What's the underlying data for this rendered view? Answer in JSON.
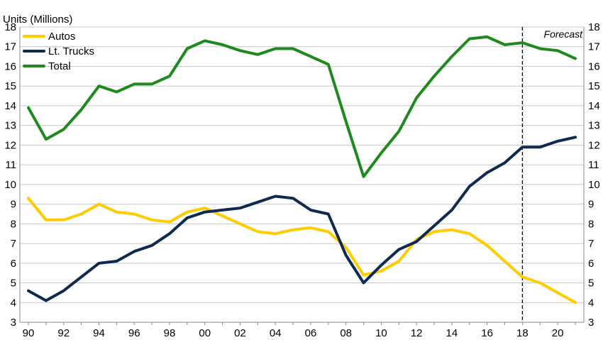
{
  "chart_data": {
    "type": "line",
    "ylabel": "Units (Millions)",
    "ylim": [
      3,
      18
    ],
    "yticks": [
      3,
      4,
      5,
      6,
      7,
      8,
      9,
      10,
      11,
      12,
      13,
      14,
      15,
      16,
      17,
      18
    ],
    "x": [
      1990,
      1991,
      1992,
      1993,
      1994,
      1995,
      1996,
      1997,
      1998,
      1999,
      2000,
      2001,
      2002,
      2003,
      2004,
      2005,
      2006,
      2007,
      2008,
      2009,
      2010,
      2011,
      2012,
      2013,
      2014,
      2015,
      2016,
      2017,
      2018,
      2019,
      2020,
      2021
    ],
    "xtick_labels": [
      "90",
      "92",
      "94",
      "96",
      "98",
      "00",
      "02",
      "04",
      "06",
      "08",
      "10",
      "12",
      "14",
      "16",
      "18",
      "20"
    ],
    "series": [
      {
        "name": "Autos",
        "color": "#FFCC00",
        "values": [
          9.3,
          8.2,
          8.2,
          8.5,
          9.0,
          8.6,
          8.5,
          8.2,
          8.1,
          8.6,
          8.8,
          8.4,
          8.0,
          7.6,
          7.5,
          7.7,
          7.8,
          7.6,
          6.8,
          5.4,
          5.6,
          6.1,
          7.2,
          7.6,
          7.7,
          7.5,
          6.9,
          6.1,
          5.3,
          5.0,
          4.5,
          4.0
        ]
      },
      {
        "name": "Lt. Trucks",
        "color": "#0E2A4F",
        "values": [
          4.6,
          4.1,
          4.6,
          5.3,
          6.0,
          6.1,
          6.6,
          6.9,
          7.5,
          8.3,
          8.6,
          8.7,
          8.8,
          9.1,
          9.4,
          9.3,
          8.7,
          8.5,
          6.4,
          5.0,
          5.9,
          6.7,
          7.1,
          7.9,
          8.7,
          9.9,
          10.6,
          11.1,
          11.9,
          11.9,
          12.2,
          12.4
        ]
      },
      {
        "name": "Total",
        "color": "#1E8A1E",
        "values": [
          13.9,
          12.3,
          12.8,
          13.8,
          15.0,
          14.7,
          15.1,
          15.1,
          15.5,
          16.9,
          17.3,
          17.1,
          16.8,
          16.6,
          16.9,
          16.9,
          16.5,
          16.1,
          13.2,
          10.4,
          11.6,
          12.7,
          14.4,
          15.5,
          16.5,
          17.4,
          17.5,
          17.1,
          17.2,
          16.9,
          16.8,
          16.4
        ]
      }
    ],
    "forecast_start": 2018,
    "annotation": "Forecast",
    "legend_placement": "top-left",
    "grid": true
  }
}
